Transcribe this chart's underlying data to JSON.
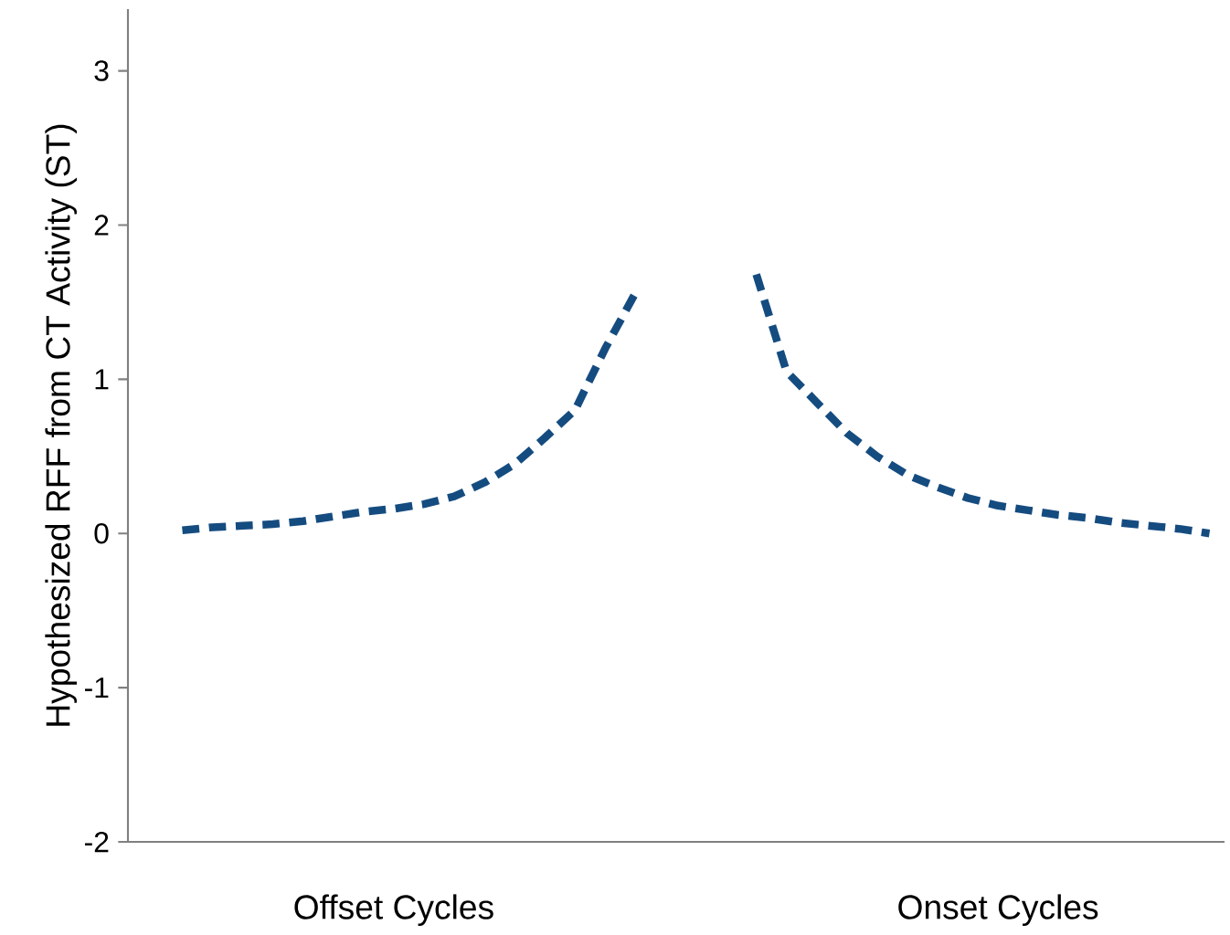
{
  "chart_data": {
    "type": "line",
    "ylabel": "Hypothesized  RFF from CT Activity (ST)",
    "ylim": [
      -2,
      3.4
    ],
    "yticks": [
      -2,
      -1,
      0,
      1,
      2,
      3
    ],
    "line_style": "dashed",
    "categories": [
      null,
      null,
      null,
      null,
      null,
      null,
      null,
      "Offset Cycles",
      null,
      null,
      null,
      null,
      null,
      null,
      null,
      null,
      null,
      null,
      null,
      null,
      null,
      null,
      null,
      null,
      null,
      null,
      null,
      "Onset Cycles",
      null,
      null,
      null,
      null,
      null,
      null,
      null
    ],
    "series": [
      {
        "color": "#154c80",
        "values": [
          0.02,
          0.04,
          0.05,
          0.06,
          0.08,
          0.11,
          0.14,
          0.16,
          0.19,
          0.24,
          0.33,
          0.45,
          0.62,
          0.8,
          1.2,
          1.56,
          null,
          null,
          null,
          null,
          null,
          null,
          null,
          null,
          null,
          null,
          null,
          null,
          null,
          null,
          null,
          null,
          null,
          null,
          null
        ]
      },
      {
        "color": "#154c80",
        "values": [
          null,
          null,
          null,
          null,
          null,
          null,
          null,
          null,
          null,
          null,
          null,
          null,
          null,
          null,
          null,
          null,
          null,
          null,
          null,
          1.68,
          1.05,
          0.85,
          0.65,
          0.5,
          0.38,
          0.3,
          0.23,
          0.18,
          0.15,
          0.12,
          0.1,
          0.07,
          0.05,
          0.03,
          0.0
        ]
      }
    ]
  }
}
